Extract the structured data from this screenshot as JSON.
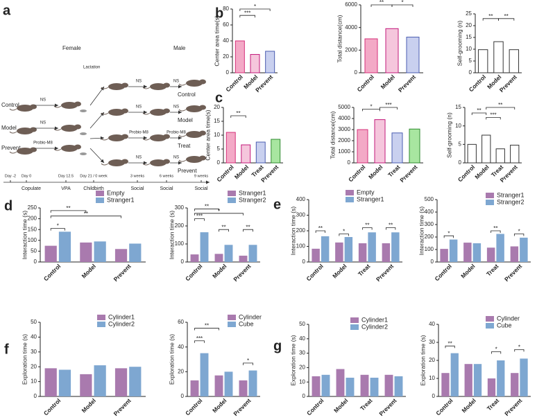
{
  "panel_labels": [
    "a",
    "b",
    "c",
    "d",
    "e",
    "f",
    "g"
  ],
  "panel_a": {
    "female": "Female",
    "male": "Male",
    "lactation": "Lactation",
    "ns": "NS",
    "probiotic": "Probio-M8",
    "groups": [
      "Control",
      "Model",
      "Prevent"
    ],
    "outcomes": [
      "Control",
      "Model",
      "Treat",
      "Prevent"
    ],
    "timeline_days": [
      "Day -2",
      "Day 0",
      "Day 12.5",
      "Day 21 / 0 week",
      "3 weeks",
      "6 weeks",
      "9 weeks"
    ],
    "timeline_events": [
      "Copulate",
      "VPA",
      "Childbirth",
      "Social",
      "Social",
      "Social"
    ]
  },
  "chart_data": [
    {
      "type": "bar",
      "ylabel": "Center area time(s)",
      "categories": [
        "Control",
        "Model",
        "Prevent"
      ],
      "values": [
        40,
        23,
        27
      ],
      "colors": [
        "#f3a9c6",
        "#f5c6dc",
        "#c9d0ef"
      ],
      "ylim": [
        0,
        80
      ],
      "yticks": [
        0,
        20,
        40,
        60,
        80
      ],
      "annotations": [
        "***",
        "*"
      ]
    },
    {
      "type": "bar",
      "ylabel": "Total distance(cm)",
      "categories": [
        "Control",
        "Model",
        "Prevent"
      ],
      "values": [
        3000,
        3900,
        3150
      ],
      "colors": [
        "#f3a9c6",
        "#f5c6dc",
        "#c9d0ef"
      ],
      "ylim": [
        0,
        6000
      ],
      "yticks": [
        0,
        2000,
        4000,
        6000
      ],
      "annotations": [
        "**",
        "*"
      ]
    },
    {
      "type": "bar",
      "ylabel": "Self-grooming (n)",
      "categories": [
        "Control",
        "Model",
        "Prevent"
      ],
      "values": [
        9.8,
        13.2,
        9.8
      ],
      "colors": [
        "#ffffff",
        "#ffffff",
        "#ffffff"
      ],
      "ylim": [
        0,
        25
      ],
      "yticks": [
        0,
        5,
        10,
        15,
        20,
        25
      ],
      "annotations": [
        "**",
        "**"
      ]
    },
    {
      "type": "bar",
      "ylabel": "Center area time(s)",
      "categories": [
        "Control",
        "Model",
        "Treat",
        "Prevent"
      ],
      "values": [
        11,
        6.5,
        7.5,
        8.5
      ],
      "colors": [
        "#f3a9c6",
        "#f5c6dc",
        "#c9d0ef",
        "#a8e6a0"
      ],
      "ylim": [
        0,
        20
      ],
      "yticks": [
        0,
        5,
        10,
        15,
        20
      ],
      "annotations": [
        "**"
      ]
    },
    {
      "type": "bar",
      "ylabel": "Total distance(cm)",
      "categories": [
        "Control",
        "Model",
        "Treat",
        "Prevent"
      ],
      "values": [
        3000,
        3900,
        2700,
        3050
      ],
      "colors": [
        "#f3a9c6",
        "#f5c6dc",
        "#c9d0ef",
        "#a8e6a0"
      ],
      "ylim": [
        0,
        5000
      ],
      "yticks": [
        0,
        1000,
        2000,
        3000,
        4000,
        5000
      ],
      "annotations": [
        "*",
        "***"
      ]
    },
    {
      "type": "bar",
      "ylabel": "Self-grooming (n)",
      "categories": [
        "Control",
        "Model",
        "Treat",
        "Prevent"
      ],
      "values": [
        5,
        7.5,
        3.8,
        4.8
      ],
      "colors": [
        "#ffffff",
        "#ffffff",
        "#ffffff",
        "#ffffff"
      ],
      "ylim": [
        0,
        15
      ],
      "yticks": [
        0,
        5,
        10,
        15
      ],
      "annotations": [
        "**",
        "***",
        "**"
      ]
    },
    {
      "type": "grouped",
      "ylabel": "Interaction time (s)",
      "categories": [
        "Control",
        "Model",
        "Prevent"
      ],
      "series": [
        {
          "name": "Empty",
          "color": "#a97aae",
          "values": [
            75,
            90,
            60
          ]
        },
        {
          "name": "Stranger1",
          "color": "#7ea7d1",
          "values": [
            140,
            95,
            85
          ]
        }
      ],
      "ylim": [
        0,
        250
      ],
      "yticks": [
        0,
        50,
        100,
        150,
        200,
        250
      ],
      "annotations": [
        "*",
        "**",
        "**"
      ]
    },
    {
      "type": "grouped",
      "ylabel": "Interaction time (s)",
      "categories": [
        "Control",
        "Model",
        "Prevent"
      ],
      "series": [
        {
          "name": "Stranger1",
          "color": "#a97aae",
          "values": [
            42,
            45,
            35
          ]
        },
        {
          "name": "Stranger2",
          "color": "#7ea7d1",
          "values": [
            165,
            95,
            95
          ]
        }
      ],
      "ylim": [
        0,
        300
      ],
      "yticks": [
        0,
        100,
        200,
        300
      ],
      "annotations": [
        "***",
        "**",
        "*",
        "**",
        "**"
      ]
    },
    {
      "type": "grouped",
      "ylabel": "Interaction time (s)",
      "categories": [
        "Control",
        "Model",
        "Treat",
        "Prevent"
      ],
      "series": [
        {
          "name": "Empty",
          "color": "#a97aae",
          "values": [
            85,
            125,
            120,
            120
          ]
        },
        {
          "name": "Stranger1",
          "color": "#7ea7d1",
          "values": [
            165,
            160,
            190,
            190
          ]
        }
      ],
      "ylim": [
        0,
        400
      ],
      "yticks": [
        0,
        100,
        200,
        300,
        400
      ],
      "annotations": [
        "**",
        "*",
        "**",
        "**"
      ]
    },
    {
      "type": "grouped",
      "ylabel": "Interaction time (s)",
      "categories": [
        "Control",
        "Model",
        "Treat",
        "Prevent"
      ],
      "series": [
        {
          "name": "Stranger1",
          "color": "#a97aae",
          "values": [
            105,
            155,
            115,
            125
          ]
        },
        {
          "name": "Stranger2",
          "color": "#7ea7d1",
          "values": [
            180,
            150,
            225,
            195
          ]
        }
      ],
      "ylim": [
        0,
        500
      ],
      "yticks": [
        0,
        100,
        200,
        300,
        400,
        500
      ],
      "annotations": [
        "*",
        "**",
        "*"
      ]
    },
    {
      "type": "grouped",
      "ylabel": "Exploration time (s)",
      "categories": [
        "Control",
        "Model",
        "Prevent"
      ],
      "series": [
        {
          "name": "Cylinder1",
          "color": "#a97aae",
          "values": [
            19,
            15,
            19
          ]
        },
        {
          "name": "Cylinder2",
          "color": "#7ea7d1",
          "values": [
            18,
            21,
            20
          ]
        }
      ],
      "ylim": [
        0,
        50
      ],
      "yticks": [
        0,
        10,
        20,
        30,
        40,
        50
      ],
      "annotations": []
    },
    {
      "type": "grouped",
      "ylabel": "Exploration time (s)",
      "categories": [
        "Control",
        "Model",
        "Prevent"
      ],
      "series": [
        {
          "name": "Cylinder",
          "color": "#a97aae",
          "values": [
            13,
            17,
            13
          ]
        },
        {
          "name": "Cube",
          "color": "#7ea7d1",
          "values": [
            35,
            20,
            21
          ]
        }
      ],
      "ylim": [
        0,
        60
      ],
      "yticks": [
        0,
        20,
        40,
        60
      ],
      "annotations": [
        "***",
        "**",
        "*"
      ]
    },
    {
      "type": "grouped",
      "ylabel": "Exploration time (s)",
      "categories": [
        "Control",
        "Model",
        "Treat",
        "Prevent"
      ],
      "series": [
        {
          "name": "Cylinder1",
          "color": "#a97aae",
          "values": [
            14,
            19,
            15,
            15
          ]
        },
        {
          "name": "Cylinder2",
          "color": "#7ea7d1",
          "values": [
            15,
            13,
            13,
            14
          ]
        }
      ],
      "ylim": [
        0,
        50
      ],
      "yticks": [
        0,
        10,
        20,
        30,
        40,
        50
      ],
      "annotations": []
    },
    {
      "type": "grouped",
      "ylabel": "Exploration time (s)",
      "categories": [
        "Control",
        "Model",
        "Treat",
        "Prevent"
      ],
      "series": [
        {
          "name": "Cylinder",
          "color": "#a97aae",
          "values": [
            13,
            18,
            10,
            13
          ]
        },
        {
          "name": "Cube",
          "color": "#7ea7d1",
          "values": [
            24,
            18,
            20,
            21
          ]
        }
      ],
      "ylim": [
        0,
        40
      ],
      "yticks": [
        0,
        10,
        20,
        30,
        40
      ],
      "annotations": [
        "**",
        "*",
        "*"
      ]
    }
  ]
}
